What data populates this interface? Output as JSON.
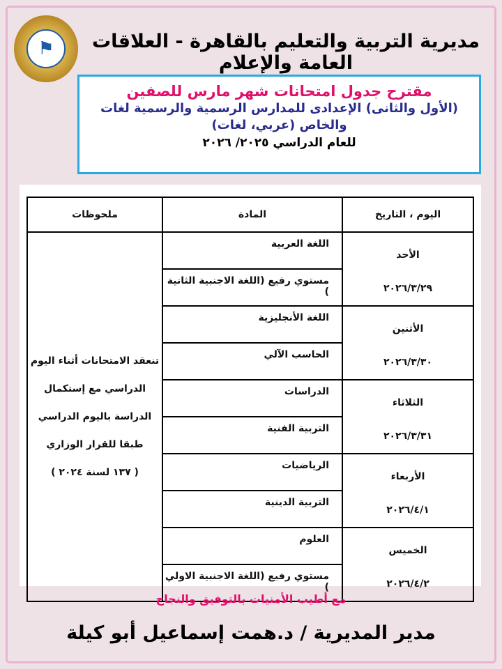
{
  "header": {
    "title": "مديرية التربية والتعليم بالقاهرة - العلاقات العامة والإعلام",
    "logo_icon": "directorate-seal-logo"
  },
  "box": {
    "line1": "مقترح جدول امتحانات شهر مارس للصفين",
    "line2": "(الأول والثانى) الإعدادى للمدارس الرسمية والرسمية لغات",
    "line3": "والخاص (عربي، لغات)",
    "line4": "للعام الدراسي ٢٠٢٥/ ٢٠٢٦"
  },
  "table": {
    "headers": {
      "date": "اليوم ، التاريخ",
      "subject": "المادة",
      "notes": "ملحوظات"
    },
    "rows": [
      {
        "day": "الأحد",
        "date": "٢٠٢٦/٣/٢٩",
        "subjects": [
          "اللغة العربية",
          "مستوي رفيع (اللغة الاجنبية الثانية )"
        ]
      },
      {
        "day": "الأثنين",
        "date": "٢٠٢٦/٣/٣٠",
        "subjects": [
          "اللغة الأنجليزية",
          "الحاسب الآلي"
        ]
      },
      {
        "day": "الثلاثاء",
        "date": "٢٠٢٦/٣/٣١",
        "subjects": [
          "الدراسات",
          "التربية الفنية"
        ]
      },
      {
        "day": "الأربعاء",
        "date": "٢٠٢٦/٤/١",
        "subjects": [
          "الرياضيات",
          "التربية الدينية"
        ]
      },
      {
        "day": "الخميس",
        "date": "٢٠٢٦/٤/٢",
        "subjects": [
          "العلوم",
          "مستوي رفيع (اللغة الاجنبية الاولي )"
        ]
      }
    ],
    "notes": [
      "تنعقد الامتحانات أثناء اليوم",
      "الدراسي مع إستكمال",
      "الدراسة باليوم الدراسي",
      "طبقا للقرار الوزاري",
      "( ١٣٧ لسنة ٢٠٢٤ )"
    ]
  },
  "footer": {
    "wish": "مع أطيب الأمنيات بالتوفيق والنجاح",
    "signature": "مدير المديرية / د.همت إسماعيل أبو كيلة"
  },
  "colors": {
    "title_pink": "#e0106a",
    "subtitle_blue": "#2a2c8c",
    "box_border": "#2aa8e0"
  }
}
